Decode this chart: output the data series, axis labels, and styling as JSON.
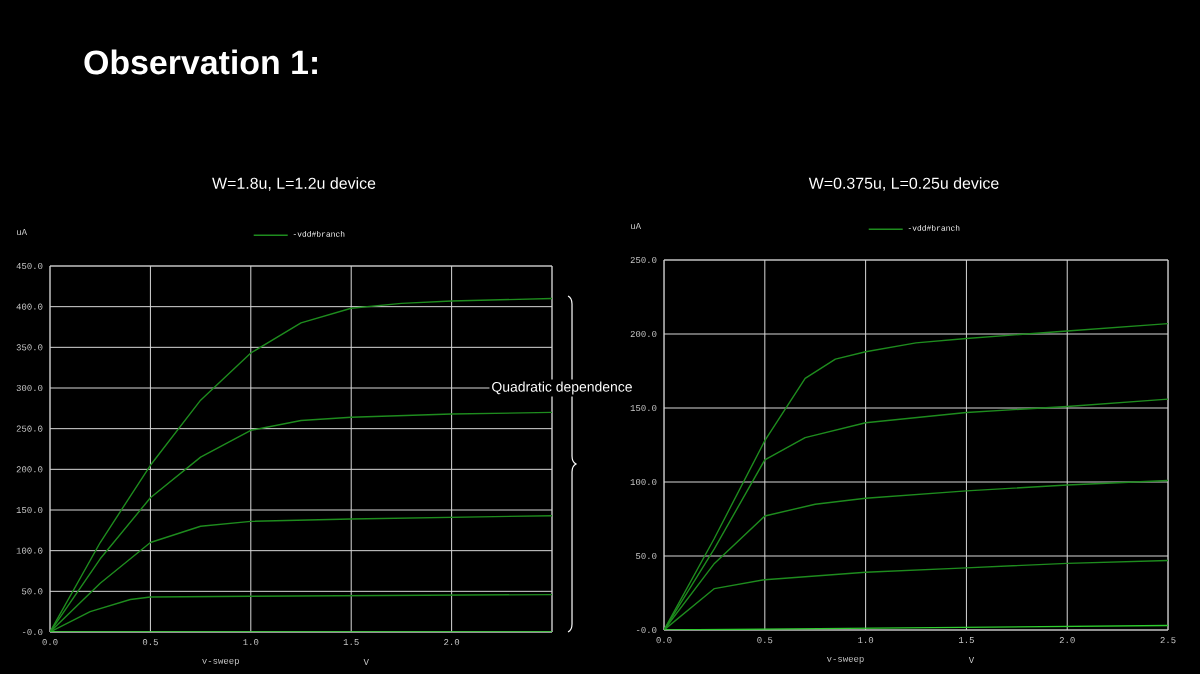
{
  "chart_data": [
    {
      "type": "line",
      "title": "Observation 1:",
      "subtitle": "W=1.8u, L=1.2u device",
      "xlabel": "v-sweep",
      "ylabel": "uA",
      "annotations": [
        "V",
        "Quadratic dependence"
      ],
      "xlim": [
        0,
        2.5
      ],
      "ylim": [
        0,
        450
      ],
      "xticks": [
        {
          "value": 0,
          "label": "0.0"
        },
        {
          "value": 0.5,
          "label": "0.5"
        },
        {
          "value": 1,
          "label": "1.0"
        },
        {
          "value": 1.5,
          "label": "1.5"
        },
        {
          "value": 2,
          "label": "2.0"
        },
        {
          "value": 2.5,
          "label": null
        }
      ],
      "yticks": [
        {
          "value": 0,
          "label": "-0.0"
        },
        {
          "value": 50,
          "label": "50.0"
        },
        {
          "value": 100,
          "label": "100.0"
        },
        {
          "value": 150,
          "label": "150.0"
        },
        {
          "value": 200,
          "label": "200.0"
        },
        {
          "value": 250,
          "label": "250.0"
        },
        {
          "value": 300,
          "label": "300.0"
        },
        {
          "value": 350,
          "label": "350.0"
        },
        {
          "value": 400,
          "label": "400.0"
        },
        {
          "value": 450,
          "label": "450.0"
        }
      ],
      "grid": true,
      "legend": "top",
      "series": [
        {
          "name": "-vdd#branch",
          "color": "#1e8c1e",
          "x": [
            0,
            0.25,
            0.5,
            0.75,
            1.0,
            1.25,
            1.5,
            1.75,
            2.0,
            2.5
          ],
          "values": [
            0,
            110,
            205,
            285,
            343,
            380,
            398,
            404,
            407,
            410
          ]
        },
        {
          "color": "#1e8c1e",
          "x": [
            0,
            0.25,
            0.5,
            0.75,
            1.0,
            1.25,
            1.5,
            2.0,
            2.5
          ],
          "values": [
            0,
            90,
            165,
            215,
            248,
            260,
            264,
            268,
            270
          ]
        },
        {
          "color": "#1e8c1e",
          "x": [
            0,
            0.25,
            0.5,
            0.75,
            1.0,
            1.5,
            2.0,
            2.5
          ],
          "values": [
            0,
            60,
            110,
            130,
            136,
            139,
            141,
            143
          ]
        },
        {
          "color": "#1e8c1e",
          "x": [
            0,
            0.2,
            0.4,
            0.5,
            1.0,
            2.5
          ],
          "values": [
            0,
            25,
            40,
            43,
            44,
            46
          ]
        },
        {
          "color": "#2ecc2e",
          "x": [
            0,
            2.5
          ],
          "values": [
            0,
            0
          ]
        }
      ]
    },
    {
      "type": "line",
      "title": "W=0.375u, L=0.25u device",
      "xlabel": "v-sweep",
      "ylabel": "uA",
      "annotations": [
        "V"
      ],
      "xlim": [
        0,
        2.5
      ],
      "ylim": [
        0,
        250
      ],
      "xticks": [
        {
          "value": 0,
          "label": "0.0"
        },
        {
          "value": 0.5,
          "label": "0.5"
        },
        {
          "value": 1,
          "label": "1.0"
        },
        {
          "value": 1.5,
          "label": "1.5"
        },
        {
          "value": 2,
          "label": "2.0"
        },
        {
          "value": 2.5,
          "label": "2.5"
        }
      ],
      "yticks": [
        {
          "value": 0,
          "label": "-0.0"
        },
        {
          "value": 50,
          "label": "50.0"
        },
        {
          "value": 100,
          "label": "100.0"
        },
        {
          "value": 150,
          "label": "150.0"
        },
        {
          "value": 200,
          "label": "200.0"
        },
        {
          "value": 250,
          "label": "250.0"
        }
      ],
      "grid": true,
      "legend": "top",
      "series": [
        {
          "name": "-vdd#branch",
          "color": "#1e8c1e",
          "x": [
            0,
            0.25,
            0.5,
            0.7,
            0.85,
            1.0,
            1.25,
            1.5,
            2.0,
            2.5
          ],
          "values": [
            0,
            62,
            128,
            170,
            183,
            188,
            194,
            197,
            202,
            207
          ]
        },
        {
          "color": "#1e8c1e",
          "x": [
            0,
            0.25,
            0.5,
            0.7,
            1.0,
            1.5,
            2.0,
            2.5
          ],
          "values": [
            0,
            55,
            115,
            130,
            140,
            147,
            151,
            156
          ]
        },
        {
          "color": "#1e8c1e",
          "x": [
            0,
            0.25,
            0.5,
            0.75,
            1.0,
            1.5,
            2.0,
            2.5
          ],
          "values": [
            0,
            45,
            77,
            85,
            89,
            94,
            98,
            101
          ]
        },
        {
          "color": "#1e8c1e",
          "x": [
            0,
            0.25,
            0.5,
            1.0,
            1.5,
            2.0,
            2.5
          ],
          "values": [
            0,
            28,
            34,
            39,
            42,
            45,
            47
          ]
        },
        {
          "color": "#2ecc2e",
          "x": [
            0,
            2.5
          ],
          "values": [
            0,
            3
          ]
        }
      ]
    }
  ]
}
